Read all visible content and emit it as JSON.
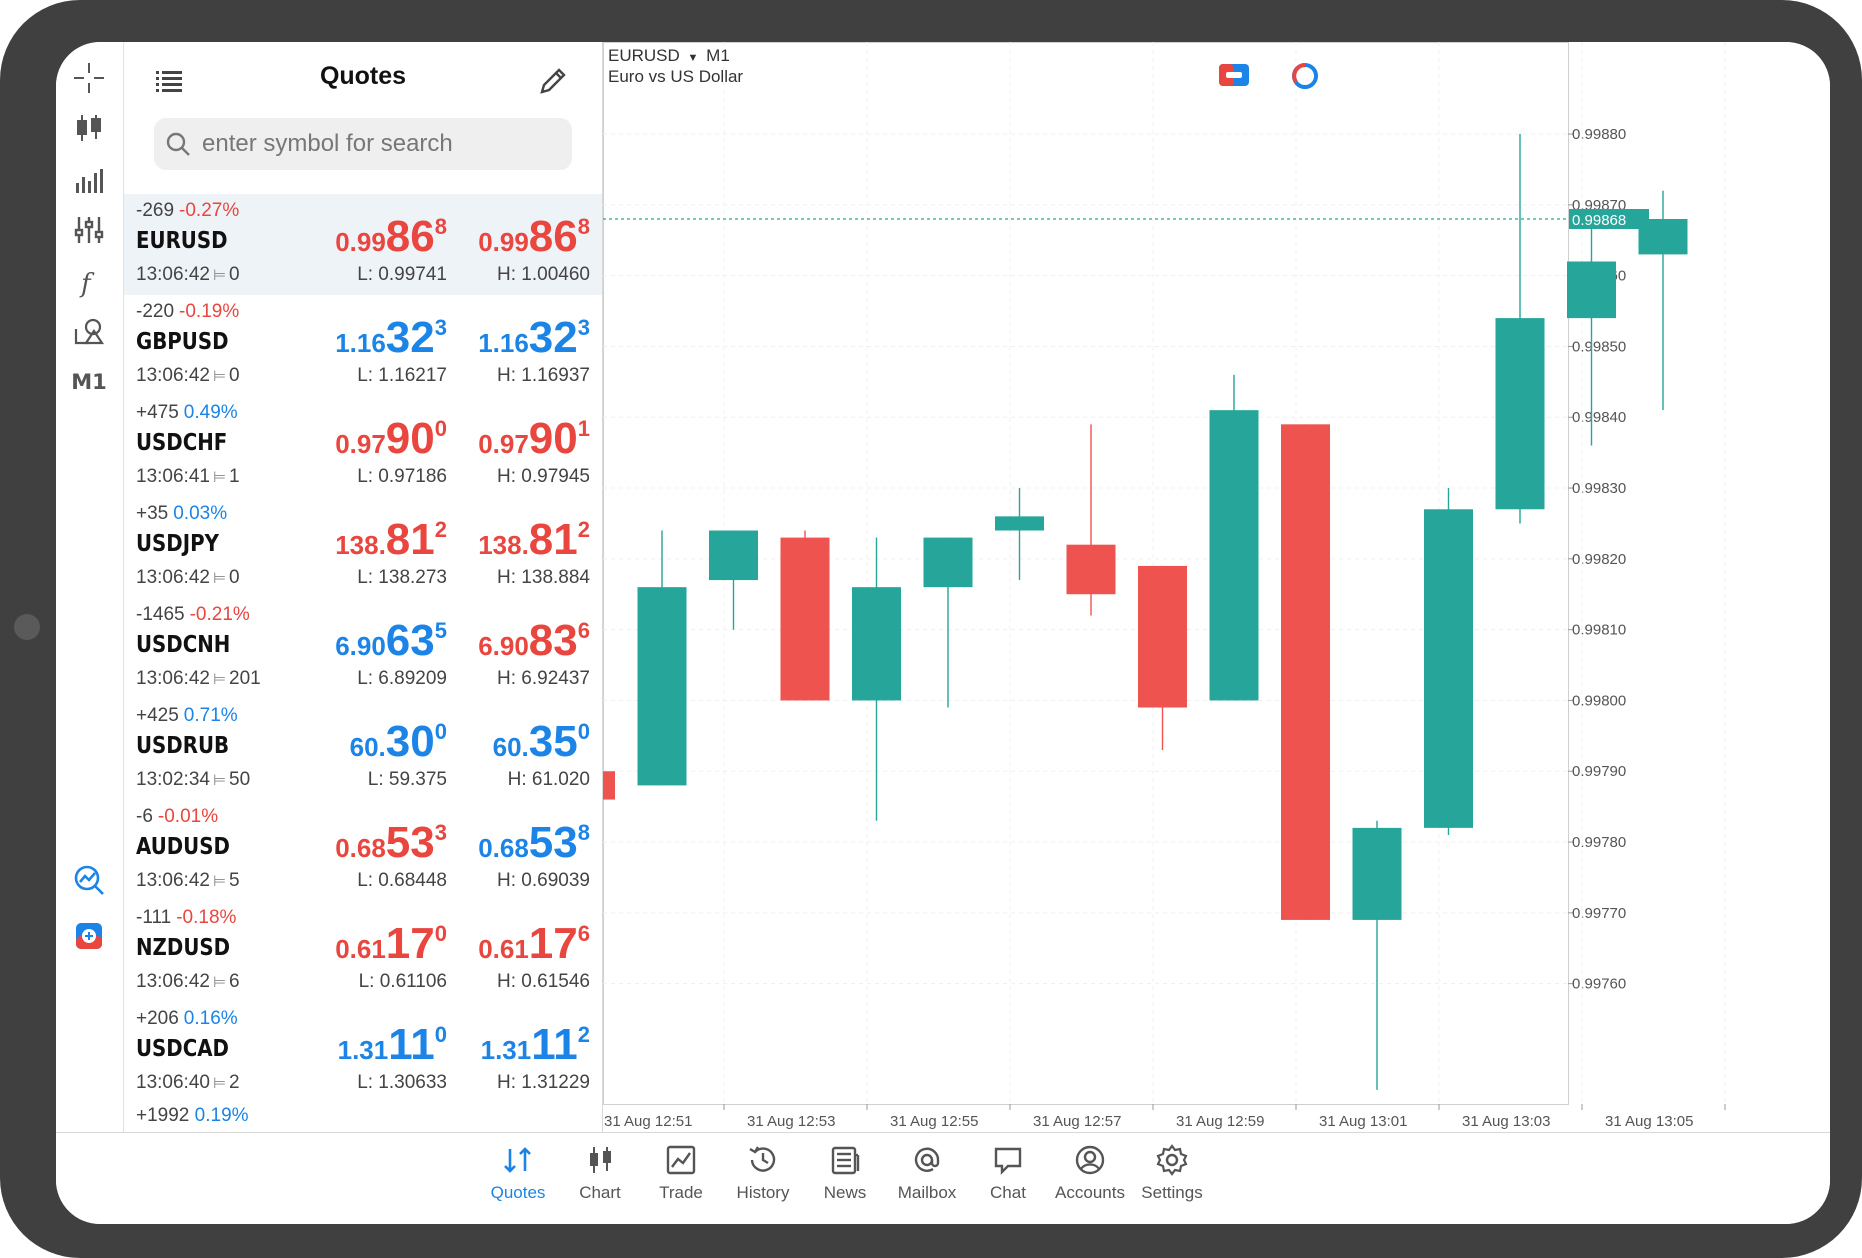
{
  "quotes_panel": {
    "title": "Quotes",
    "search_placeholder": "enter symbol for search",
    "rows": [
      {
        "change_points": "-269",
        "change_pct": "-0.27%",
        "pct_color": "red",
        "symbol": "EURUSD",
        "time": "13:06:42",
        "spread": "0",
        "bid": {
          "prefix": "0.99",
          "big": "86",
          "sup": "8",
          "color": "red"
        },
        "ask": {
          "prefix": "0.99",
          "big": "86",
          "sup": "8",
          "color": "red"
        },
        "low": "L: 0.99741",
        "high": "H: 1.00460"
      },
      {
        "change_points": "-220",
        "change_pct": "-0.19%",
        "pct_color": "red",
        "symbol": "GBPUSD",
        "time": "13:06:42",
        "spread": "0",
        "bid": {
          "prefix": "1.16",
          "big": "32",
          "sup": "3",
          "color": "blue"
        },
        "ask": {
          "prefix": "1.16",
          "big": "32",
          "sup": "3",
          "color": "blue"
        },
        "low": "L: 1.16217",
        "high": "H: 1.16937"
      },
      {
        "change_points": "+475",
        "change_pct": "0.49%",
        "pct_color": "blue",
        "symbol": "USDCHF",
        "time": "13:06:41",
        "spread": "1",
        "bid": {
          "prefix": "0.97",
          "big": "90",
          "sup": "0",
          "color": "red"
        },
        "ask": {
          "prefix": "0.97",
          "big": "90",
          "sup": "1",
          "color": "red"
        },
        "low": "L: 0.97186",
        "high": "H: 0.97945"
      },
      {
        "change_points": "+35",
        "change_pct": "0.03%",
        "pct_color": "blue",
        "symbol": "USDJPY",
        "time": "13:06:42",
        "spread": "0",
        "bid": {
          "prefix": "138.",
          "big": "81",
          "sup": "2",
          "color": "red"
        },
        "ask": {
          "prefix": "138.",
          "big": "81",
          "sup": "2",
          "color": "red"
        },
        "low": "L: 138.273",
        "high": "H: 138.884"
      },
      {
        "change_points": "-1465",
        "change_pct": "-0.21%",
        "pct_color": "red",
        "symbol": "USDCNH",
        "time": "13:06:42",
        "spread": "201",
        "bid": {
          "prefix": "6.90",
          "big": "63",
          "sup": "5",
          "color": "blue"
        },
        "ask": {
          "prefix": "6.90",
          "big": "83",
          "sup": "6",
          "color": "red"
        },
        "low": "L: 6.89209",
        "high": "H: 6.92437"
      },
      {
        "change_points": "+425",
        "change_pct": "0.71%",
        "pct_color": "blue",
        "symbol": "USDRUB",
        "time": "13:02:34",
        "spread": "50",
        "bid": {
          "prefix": "60.",
          "big": "30",
          "sup": "0",
          "color": "blue"
        },
        "ask": {
          "prefix": "60.",
          "big": "35",
          "sup": "0",
          "color": "blue"
        },
        "low": "L: 59.375",
        "high": "H: 61.020"
      },
      {
        "change_points": "-6",
        "change_pct": "-0.01%",
        "pct_color": "red",
        "symbol": "AUDUSD",
        "time": "13:06:42",
        "spread": "5",
        "bid": {
          "prefix": "0.68",
          "big": "53",
          "sup": "3",
          "color": "red"
        },
        "ask": {
          "prefix": "0.68",
          "big": "53",
          "sup": "8",
          "color": "blue"
        },
        "low": "L: 0.68448",
        "high": "H: 0.69039"
      },
      {
        "change_points": "-111",
        "change_pct": "-0.18%",
        "pct_color": "red",
        "symbol": "NZDUSD",
        "time": "13:06:42",
        "spread": "6",
        "bid": {
          "prefix": "0.61",
          "big": "17",
          "sup": "0",
          "color": "red"
        },
        "ask": {
          "prefix": "0.61",
          "big": "17",
          "sup": "6",
          "color": "red"
        },
        "low": "L: 0.61106",
        "high": "H: 0.61546"
      },
      {
        "change_points": "+206",
        "change_pct": "0.16%",
        "pct_color": "blue",
        "symbol": "USDCAD",
        "time": "13:06:40",
        "spread": "2",
        "bid": {
          "prefix": "1.31",
          "big": "11",
          "sup": "0",
          "color": "blue"
        },
        "ask": {
          "prefix": "1.31",
          "big": "11",
          "sup": "2",
          "color": "blue"
        },
        "low": "L: 1.30633",
        "high": "H: 1.31229"
      }
    ],
    "partial_row": {
      "change_points": "+1992",
      "change_pct": "0.19%"
    }
  },
  "toolbar": {
    "timeframe_label": "M1",
    "icons": [
      "crosshair-icon",
      "candlestick-icon",
      "volume-bars-icon",
      "indicators-sliders-icon",
      "function-icon",
      "objects-icon",
      "trade-chart-icon",
      "one-click-trading-icon"
    ]
  },
  "chart": {
    "symbol": "EURUSD",
    "timeframe": "M1",
    "description": "Euro vs US Dollar",
    "current_price_label": "0.99868",
    "colors": {
      "bull": "#26a69a",
      "bear": "#ef5350",
      "price_line": "#26a69a"
    }
  },
  "chart_data": {
    "type": "candlestick",
    "y_ticks": [
      "0.99880",
      "0.99870",
      "0.99860",
      "0.99850",
      "0.99840",
      "0.99830",
      "0.99820",
      "0.99810",
      "0.99800",
      "0.99790",
      "0.99780",
      "0.99770",
      "0.99760"
    ],
    "x_ticks": [
      "31 Aug 12:51",
      "31 Aug 12:53",
      "31 Aug 12:55",
      "31 Aug 12:57",
      "31 Aug 12:59",
      "31 Aug 13:01",
      "31 Aug 13:03",
      "31 Aug 13:05"
    ],
    "ylim": [
      0.99743,
      0.99893
    ],
    "current_price": 0.99868,
    "candles": [
      {
        "o": 0.9979,
        "h": 0.9979,
        "l": 0.99786,
        "c": 0.99786
      },
      {
        "o": 0.99788,
        "h": 0.99824,
        "l": 0.99788,
        "c": 0.99816
      },
      {
        "o": 0.99817,
        "h": 0.99824,
        "l": 0.9981,
        "c": 0.99824
      },
      {
        "o": 0.99823,
        "h": 0.99824,
        "l": 0.998,
        "c": 0.998
      },
      {
        "o": 0.998,
        "h": 0.99823,
        "l": 0.99783,
        "c": 0.99816
      },
      {
        "o": 0.99816,
        "h": 0.99823,
        "l": 0.99799,
        "c": 0.99823
      },
      {
        "o": 0.99824,
        "h": 0.9983,
        "l": 0.99817,
        "c": 0.99826
      },
      {
        "o": 0.99822,
        "h": 0.99839,
        "l": 0.99812,
        "c": 0.99815
      },
      {
        "o": 0.99819,
        "h": 0.99819,
        "l": 0.99793,
        "c": 0.99799
      },
      {
        "o": 0.998,
        "h": 0.99846,
        "l": 0.998,
        "c": 0.99841
      },
      {
        "o": 0.99839,
        "h": 0.99839,
        "l": 0.99769,
        "c": 0.99769
      },
      {
        "o": 0.99769,
        "h": 0.99783,
        "l": 0.99745,
        "c": 0.99782
      },
      {
        "o": 0.99782,
        "h": 0.9983,
        "l": 0.99781,
        "c": 0.99827
      },
      {
        "o": 0.99827,
        "h": 0.9988,
        "l": 0.99825,
        "c": 0.99854
      },
      {
        "o": 0.99854,
        "h": 0.99868,
        "l": 0.99836,
        "c": 0.99862
      },
      {
        "o": 0.99863,
        "h": 0.99872,
        "l": 0.99841,
        "c": 0.99868
      }
    ]
  },
  "bottom_nav": {
    "items": [
      {
        "label": "Quotes",
        "icon": "quotes-arrows-icon",
        "active": true
      },
      {
        "label": "Chart",
        "icon": "chart-candles-icon"
      },
      {
        "label": "Trade",
        "icon": "trade-line-icon"
      },
      {
        "label": "History",
        "icon": "history-clock-icon"
      },
      {
        "label": "News",
        "icon": "news-icon"
      },
      {
        "label": "Mailbox",
        "icon": "mailbox-at-icon"
      },
      {
        "label": "Chat",
        "icon": "chat-bubble-icon"
      },
      {
        "label": "Accounts",
        "icon": "accounts-user-icon"
      },
      {
        "label": "Settings",
        "icon": "settings-gear-icon"
      }
    ]
  },
  "colors": {
    "accent_blue": "#1b84e6",
    "accent_red": "#e8463f",
    "bull_green": "#26a69a",
    "bear_red": "#ef5350"
  }
}
